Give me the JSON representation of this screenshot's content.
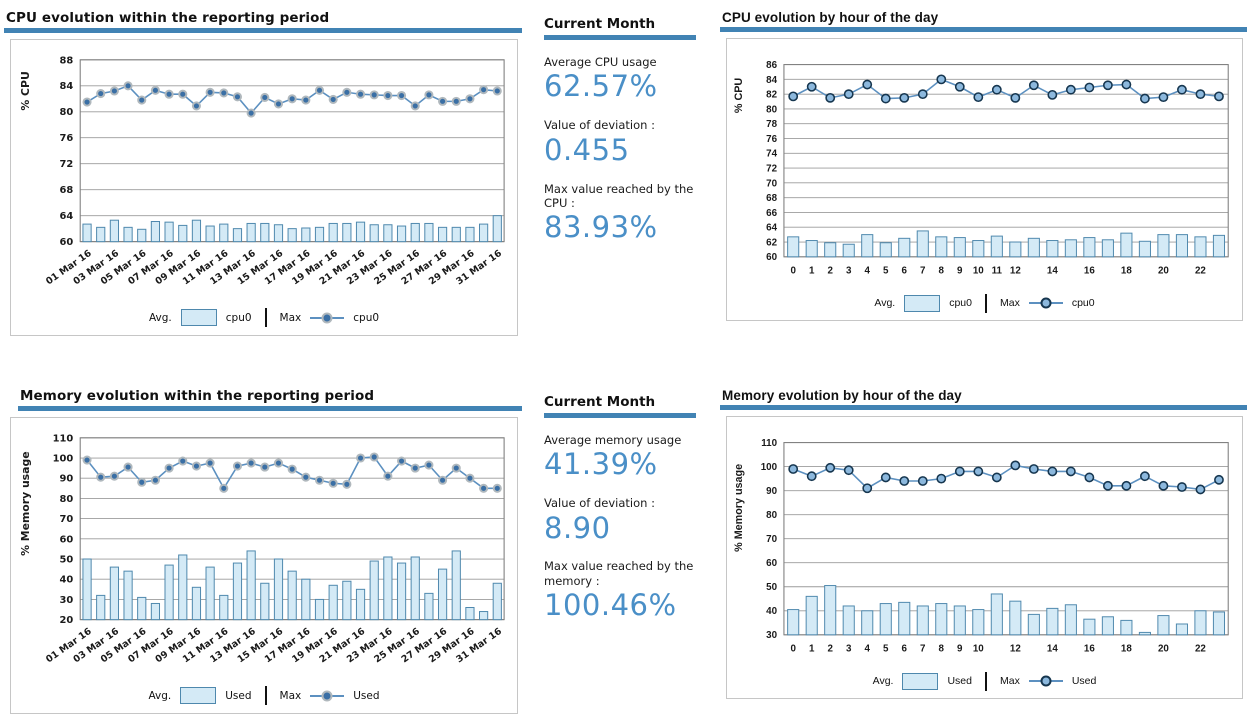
{
  "theme": {
    "accent_blue": "#4183b4",
    "stat_value_blue": "#4a8fc7",
    "bar_fill": "#d4eaf6",
    "bar_stroke": "#4e88ad",
    "line": "#5c90c0",
    "marker_fill": "#3a6fa5",
    "marker_ring": "#b0b8bd",
    "marker_open_fill": "#8cb8dd",
    "marker_open_ring": "#16364f",
    "grid": "#9b9b9b",
    "plot_border": "#808080"
  },
  "stats_panels": [
    {
      "header": "Current Month",
      "items": [
        {
          "label": "Average CPU usage",
          "value": "62.57%"
        },
        {
          "label": "Value of deviation :",
          "value": "0.455"
        },
        {
          "label": "Max value reached by the CPU :",
          "value": "83.93%"
        }
      ]
    },
    {
      "header": "Current Month",
      "items": [
        {
          "label": "Average memory usage",
          "value": "41.39%"
        },
        {
          "label": "Value of deviation :",
          "value": "8.90"
        },
        {
          "label": "Max value reached by the memory :",
          "value": "100.46%"
        }
      ]
    }
  ],
  "chart_data": [
    {
      "type": "bar",
      "title": "CPU evolution within the reporting period",
      "ylabel": "% CPU",
      "ylim": [
        60,
        88
      ],
      "ystep": 4,
      "x_rotated": true,
      "marker": "filled",
      "legend_position": "bottom",
      "grid": true,
      "legend": {
        "avg_prefix": "Avg.",
        "avg_series": "cpu0",
        "max_prefix": "Max",
        "max_series": "cpu0"
      },
      "categories": [
        "01 Mar 16",
        "02 Mar 16",
        "03 Mar 16",
        "04 Mar 16",
        "05 Mar 16",
        "06 Mar 16",
        "07 Mar 16",
        "08 Mar 16",
        "09 Mar 16",
        "10 Mar 16",
        "11 Mar 16",
        "12 Mar 16",
        "13 Mar 16",
        "14 Mar 16",
        "15 Mar 16",
        "16 Mar 16",
        "17 Mar 16",
        "18 Mar 16",
        "19 Mar 16",
        "20 Mar 16",
        "21 Mar 16",
        "22 Mar 16",
        "23 Mar 16",
        "24 Mar 16",
        "25 Mar 16",
        "26 Mar 16",
        "27 Mar 16",
        "28 Mar 16",
        "29 Mar 16",
        "30 Mar 16",
        "31 Mar 16"
      ],
      "shown_ticks": [
        0,
        2,
        4,
        6,
        8,
        10,
        12,
        14,
        16,
        18,
        20,
        22,
        24,
        26,
        28,
        30
      ],
      "series": [
        {
          "name": "cpu0",
          "role": "Avg.",
          "type": "bar",
          "values": [
            62.7,
            62.2,
            63.3,
            62.2,
            61.9,
            63.1,
            63.0,
            62.5,
            63.3,
            62.4,
            62.7,
            62.0,
            62.8,
            62.8,
            62.6,
            62.0,
            62.1,
            62.2,
            62.8,
            62.8,
            63.0,
            62.6,
            62.6,
            62.4,
            62.8,
            62.8,
            62.2,
            62.2,
            62.2,
            62.7,
            64.0
          ]
        },
        {
          "name": "cpu0",
          "role": "Max",
          "type": "line",
          "values": [
            81.5,
            82.8,
            83.2,
            84.0,
            81.8,
            83.3,
            82.7,
            82.7,
            80.9,
            83.0,
            82.9,
            82.3,
            79.8,
            82.2,
            81.2,
            82.0,
            81.8,
            83.3,
            81.9,
            83.0,
            82.7,
            82.6,
            82.5,
            82.5,
            80.9,
            82.6,
            81.6,
            81.6,
            82.0,
            83.4,
            83.2
          ]
        }
      ]
    },
    {
      "type": "bar",
      "title": "CPU evolution by hour of the day",
      "ylabel": "% CPU",
      "ylim": [
        60,
        86
      ],
      "ystep": 2,
      "x_rotated": false,
      "marker": "open",
      "legend_position": "bottom",
      "grid": true,
      "legend": {
        "avg_prefix": "Avg.",
        "avg_series": "cpu0",
        "max_prefix": "Max",
        "max_series": "cpu0"
      },
      "categories": [
        "0",
        "1",
        "2",
        "3",
        "4",
        "5",
        "6",
        "7",
        "8",
        "9",
        "10",
        "11",
        "12",
        "13",
        "14",
        "15",
        "16",
        "17",
        "18",
        "19",
        "20",
        "21",
        "22",
        "23"
      ],
      "shown_ticks": [
        0,
        1,
        2,
        3,
        4,
        5,
        6,
        7,
        8,
        9,
        10,
        11,
        12,
        14,
        16,
        18,
        20,
        22
      ],
      "series": [
        {
          "name": "cpu0",
          "role": "Avg.",
          "type": "bar",
          "values": [
            62.7,
            62.2,
            61.9,
            61.7,
            63.0,
            61.9,
            62.5,
            63.5,
            62.7,
            62.6,
            62.2,
            62.8,
            62.0,
            62.5,
            62.2,
            62.3,
            62.6,
            62.3,
            63.2,
            62.1,
            63.0,
            63.0,
            62.7,
            62.9
          ]
        },
        {
          "name": "cpu0",
          "role": "Max",
          "type": "line",
          "values": [
            81.7,
            83.0,
            81.5,
            82.0,
            83.3,
            81.4,
            81.5,
            82.0,
            84.0,
            83.0,
            81.6,
            82.6,
            81.5,
            83.2,
            81.9,
            82.6,
            82.9,
            83.2,
            83.3,
            81.4,
            81.6,
            82.6,
            82.0,
            81.7
          ]
        }
      ]
    },
    {
      "type": "bar",
      "title": "Memory evolution within the reporting period",
      "ylabel": "% Memory usage",
      "ylim": [
        20,
        110
      ],
      "ystep": 10,
      "x_rotated": true,
      "marker": "filled",
      "legend_position": "bottom",
      "grid": true,
      "legend": {
        "avg_prefix": "Avg.",
        "avg_series": "Used",
        "max_prefix": "Max",
        "max_series": "Used"
      },
      "categories": [
        "01 Mar 16",
        "02 Mar 16",
        "03 Mar 16",
        "04 Mar 16",
        "05 Mar 16",
        "06 Mar 16",
        "07 Mar 16",
        "08 Mar 16",
        "09 Mar 16",
        "10 Mar 16",
        "11 Mar 16",
        "12 Mar 16",
        "13 Mar 16",
        "14 Mar 16",
        "15 Mar 16",
        "16 Mar 16",
        "17 Mar 16",
        "18 Mar 16",
        "19 Mar 16",
        "20 Mar 16",
        "21 Mar 16",
        "22 Mar 16",
        "23 Mar 16",
        "24 Mar 16",
        "25 Mar 16",
        "26 Mar 16",
        "27 Mar 16",
        "28 Mar 16",
        "29 Mar 16",
        "30 Mar 16",
        "31 Mar 16"
      ],
      "shown_ticks": [
        0,
        2,
        4,
        6,
        8,
        10,
        12,
        14,
        16,
        18,
        20,
        22,
        24,
        26,
        28,
        30
      ],
      "series": [
        {
          "name": "Used",
          "role": "Avg.",
          "type": "bar",
          "values": [
            50,
            32,
            46,
            44,
            31,
            28,
            47,
            52,
            36,
            46,
            32,
            48,
            54,
            38,
            50,
            44,
            40,
            30,
            37,
            39,
            35,
            49,
            51,
            48,
            51,
            33,
            45,
            54,
            26,
            24,
            38
          ]
        },
        {
          "name": "Used",
          "role": "Max",
          "type": "line",
          "values": [
            99,
            90.5,
            91,
            95.5,
            88,
            89,
            95,
            98.5,
            96,
            97.5,
            85,
            96,
            97.5,
            95.5,
            97.5,
            94.5,
            90.5,
            89,
            87.5,
            87,
            100,
            100.5,
            91,
            98.5,
            95,
            96.5,
            89,
            95,
            90,
            85,
            85
          ]
        }
      ]
    },
    {
      "type": "bar",
      "title": "Memory evolution by hour of the day",
      "ylabel": "% Memory usage",
      "ylim": [
        30,
        110
      ],
      "ystep": 10,
      "x_rotated": false,
      "marker": "open",
      "legend_position": "bottom",
      "grid": true,
      "legend": {
        "avg_prefix": "Avg.",
        "avg_series": "Used",
        "max_prefix": "Max",
        "max_series": "Used"
      },
      "categories": [
        "0",
        "1",
        "2",
        "3",
        "4",
        "5",
        "6",
        "7",
        "8",
        "9",
        "10",
        "11",
        "12",
        "13",
        "14",
        "15",
        "16",
        "17",
        "18",
        "19",
        "20",
        "21",
        "22",
        "23"
      ],
      "shown_ticks": [
        0,
        1,
        2,
        3,
        4,
        5,
        6,
        7,
        8,
        9,
        10,
        12,
        14,
        16,
        18,
        20,
        22
      ],
      "series": [
        {
          "name": "Used",
          "role": "Avg.",
          "type": "bar",
          "values": [
            40.5,
            46,
            50.5,
            42,
            40,
            43,
            43.5,
            42,
            43,
            42,
            40.5,
            47,
            44,
            38.5,
            41,
            42.5,
            36.5,
            37.5,
            36,
            31,
            38,
            34.5,
            40,
            39.5
          ]
        },
        {
          "name": "Used",
          "role": "Max",
          "type": "line",
          "values": [
            99,
            96,
            99.5,
            98.5,
            91,
            95.5,
            94,
            94,
            95,
            98,
            98,
            95.5,
            100.5,
            99,
            98,
            98,
            95.5,
            92,
            92,
            96,
            92,
            91.5,
            90.5,
            94.5
          ]
        }
      ]
    }
  ]
}
